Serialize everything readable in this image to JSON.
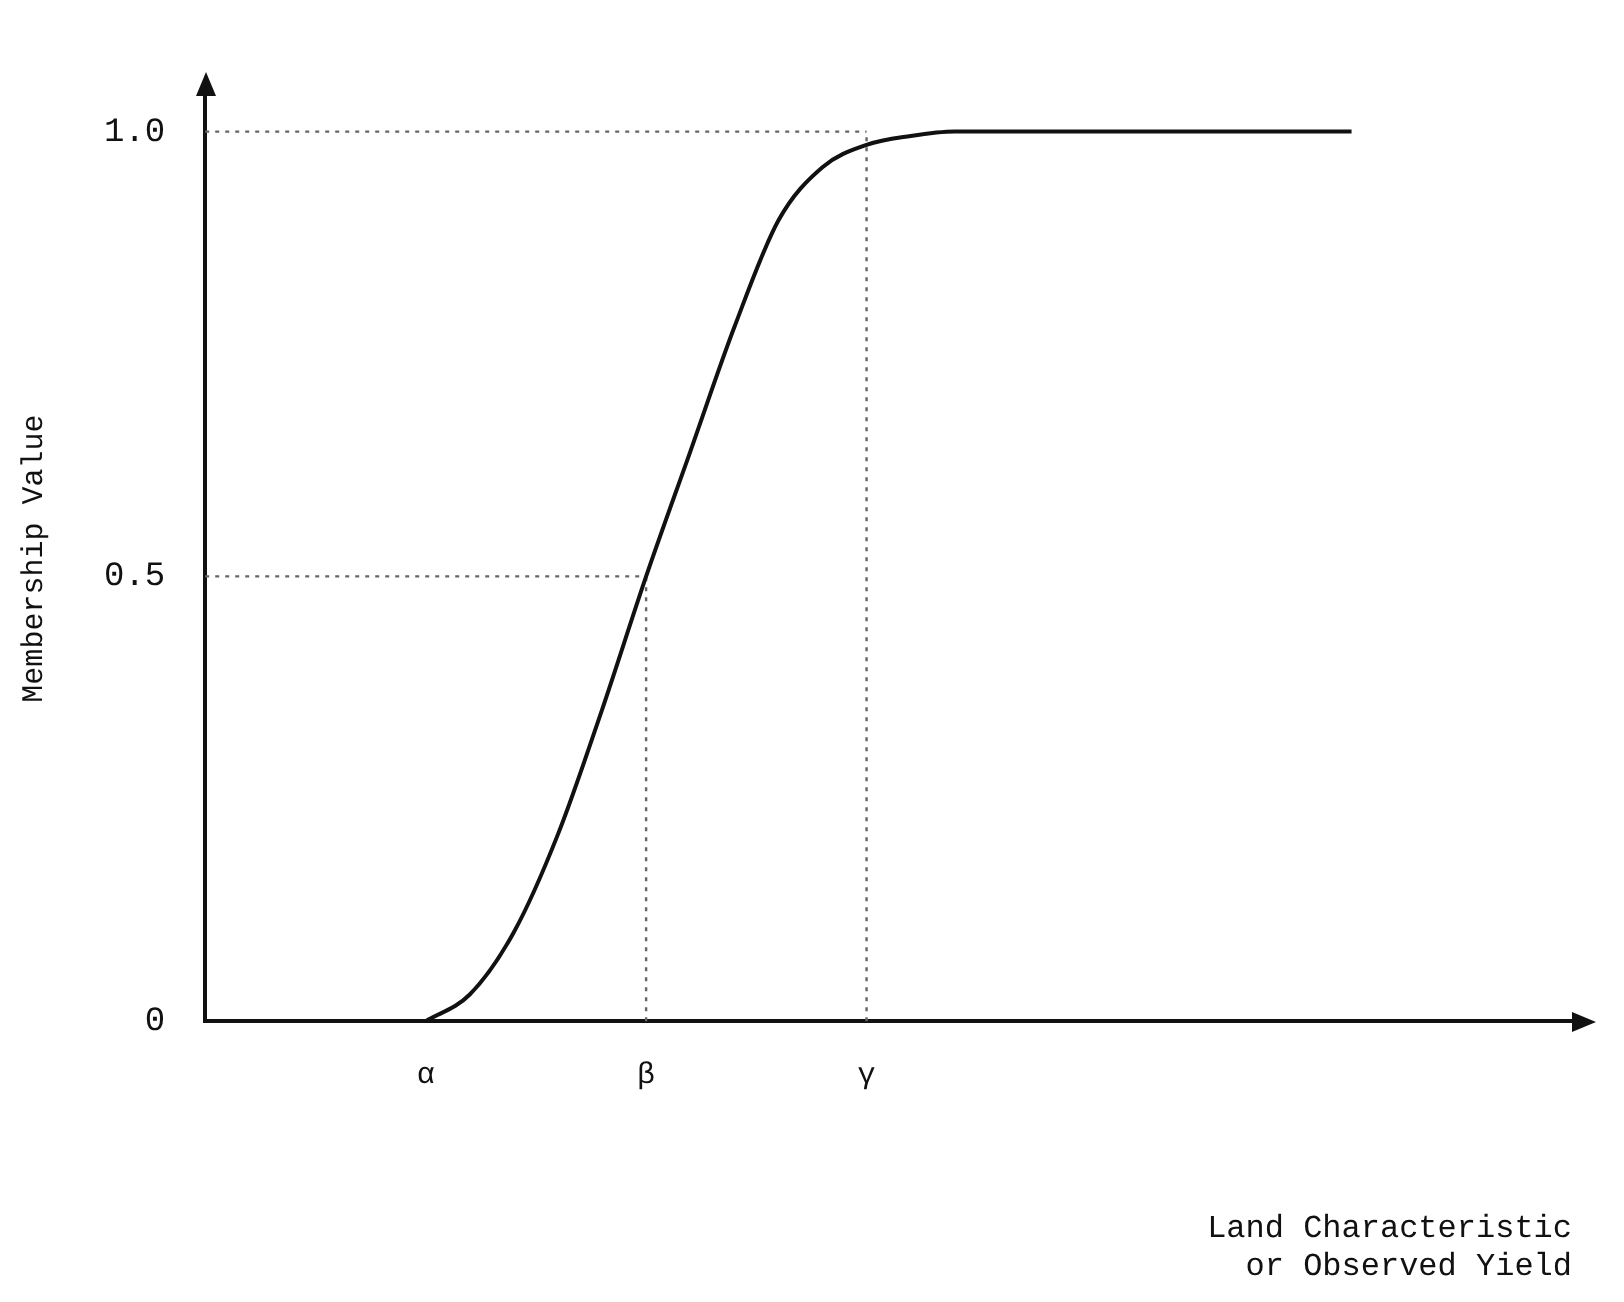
{
  "chart_data": {
    "type": "line",
    "xlabel": "Land Characteristic\nor Observed Yield",
    "ylabel": "Membership Value",
    "categories": [
      null,
      null,
      null,
      null,
      null,
      "α",
      null,
      null,
      null,
      null,
      "β",
      null,
      null,
      null,
      null,
      "γ",
      null,
      null,
      null,
      null,
      null,
      null,
      null,
      null,
      null,
      null,
      null,
      null,
      null,
      null,
      null,
      null
    ],
    "ylim": [
      0,
      1.04
    ],
    "yticks": [
      0,
      0.5,
      {
        "value": 1,
        "label": "1.0"
      }
    ],
    "grid": false,
    "legend": false,
    "marker": "none",
    "line_style": "solid",
    "series": [
      {
        "color": "#111111",
        "values": [
          null,
          null,
          null,
          null,
          null,
          0,
          0.03,
          0.1,
          0.21,
          0.35,
          0.5,
          0.64,
          0.78,
          0.9,
          0.96,
          0.985,
          0.995,
          1,
          1,
          1,
          1,
          1,
          1,
          1,
          1,
          1,
          1,
          null,
          null,
          null,
          null,
          null
        ]
      }
    ],
    "ref_lines": [
      {
        "axis": "x",
        "value": "β",
        "color": "#666666",
        "line_style": "dotted"
      },
      {
        "axis": "y",
        "value": 0.5,
        "color": "#666666",
        "line_style": "dotted"
      },
      {
        "axis": "x",
        "value": "γ",
        "color": "#666666",
        "line_style": "dotted"
      },
      {
        "axis": "y",
        "value": 1,
        "color": "#666666",
        "line_style": "dotted"
      }
    ]
  }
}
